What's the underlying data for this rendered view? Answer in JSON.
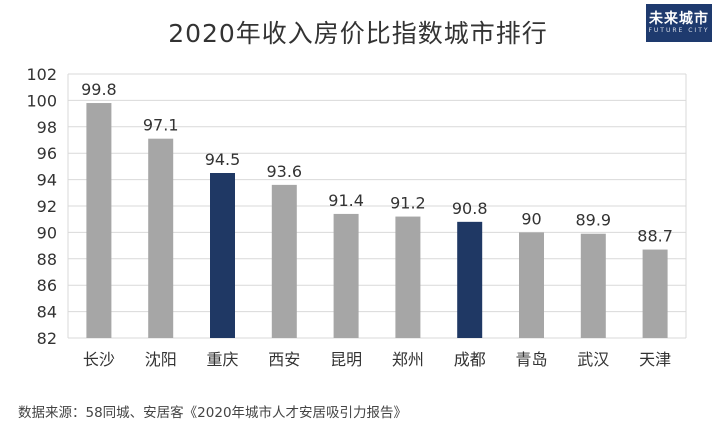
{
  "title": "2020年收入房价比指数城市排行",
  "logo": {
    "text": "未来城市",
    "sub": "FUTURE CITY"
  },
  "source": "数据来源：58同城、安居客《2020年城市人才安居吸引力报告》",
  "colors": {
    "default_bar": "#a6a6a6",
    "highlight_bar": "#1f3864",
    "grid": "#d9d9d9"
  },
  "chart_data": {
    "type": "bar",
    "title": "2020年收入房价比指数城市排行",
    "categories": [
      "长沙",
      "沈阳",
      "重庆",
      "西安",
      "昆明",
      "郑州",
      "成都",
      "青岛",
      "武汉",
      "天津"
    ],
    "values": [
      99.8,
      97.1,
      94.5,
      93.6,
      91.4,
      91.2,
      90.8,
      90,
      89.9,
      88.7
    ],
    "value_labels": [
      "99.8",
      "97.1",
      "94.5",
      "93.6",
      "91.4",
      "91.2",
      "90.8",
      "90",
      "89.9",
      "88.7"
    ],
    "highlighted": [
      "重庆",
      "成都"
    ],
    "ylim": [
      82,
      102
    ],
    "yticks": [
      82,
      84,
      86,
      88,
      90,
      92,
      94,
      96,
      98,
      100,
      102
    ],
    "grid": true,
    "xlabel": "",
    "ylabel": ""
  }
}
